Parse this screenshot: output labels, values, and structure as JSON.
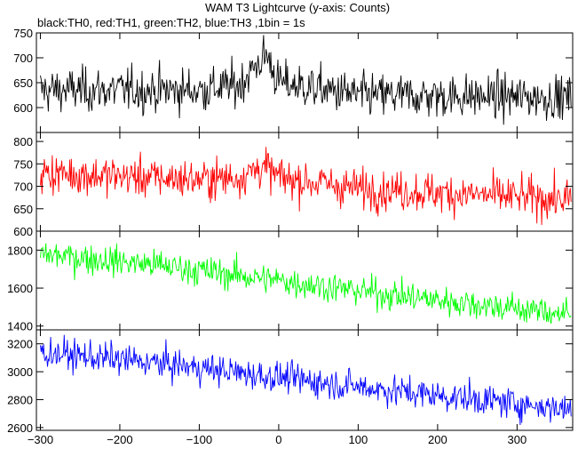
{
  "chart_data": {
    "type": "line",
    "title": "WAM T3 Lightcurve (y-axis: Counts)",
    "subtitle": "black:TH0, red:TH1, green:TH2, blue:TH3 ,1bin = 1s",
    "x_range": [
      -305,
      370
    ],
    "x_ticks": [
      -300,
      -200,
      -100,
      0,
      100,
      200,
      300
    ],
    "x_ticks_labels": [
      "−300",
      "−200",
      "−100",
      "0",
      "100",
      "200",
      "300"
    ],
    "grid": false,
    "panels": [
      {
        "series_name": "TH0",
        "color": "#000000",
        "y_range": [
          550,
          750
        ],
        "y_ticks": [
          600,
          650,
          700,
          750
        ],
        "y_labels": [
          "600",
          "650",
          "700",
          "750"
        ],
        "approx_profile": {
          "x": [
            -300,
            -100,
            -50,
            -25,
            -15,
            0,
            100,
            370
          ],
          "y": [
            635,
            635,
            645,
            690,
            705,
            650,
            625,
            620
          ]
        },
        "noise_sd": 22
      },
      {
        "series_name": "TH1",
        "color": "#ff0000",
        "y_range": [
          600,
          820
        ],
        "y_ticks": [
          600,
          650,
          700,
          750,
          800
        ],
        "y_labels": [
          "600",
          "650",
          "700",
          "750",
          "800"
        ],
        "approx_profile": {
          "x": [
            -300,
            -100,
            -50,
            -20,
            0,
            100,
            370
          ],
          "y": [
            730,
            715,
            720,
            745,
            720,
            695,
            670
          ]
        },
        "noise_sd": 22
      },
      {
        "series_name": "TH2",
        "color": "#00ff00",
        "y_range": [
          1380,
          1900
        ],
        "y_ticks": [
          1400,
          1600,
          1800
        ],
        "y_labels": [
          "1400",
          "1600",
          "1800"
        ],
        "approx_profile": {
          "x": [
            -300,
            -150,
            0,
            150,
            370
          ],
          "y": [
            1780,
            1720,
            1640,
            1560,
            1460
          ]
        },
        "noise_sd": 40
      },
      {
        "series_name": "TH3",
        "color": "#0000ff",
        "y_range": [
          2580,
          3300
        ],
        "y_ticks": [
          2600,
          2800,
          3000,
          3200
        ],
        "y_labels": [
          "2600",
          "2800",
          "3000",
          "3200"
        ],
        "approx_profile": {
          "x": [
            -300,
            -150,
            0,
            150,
            370
          ],
          "y": [
            3140,
            3060,
            2960,
            2860,
            2730
          ]
        },
        "noise_sd": 55
      }
    ]
  }
}
